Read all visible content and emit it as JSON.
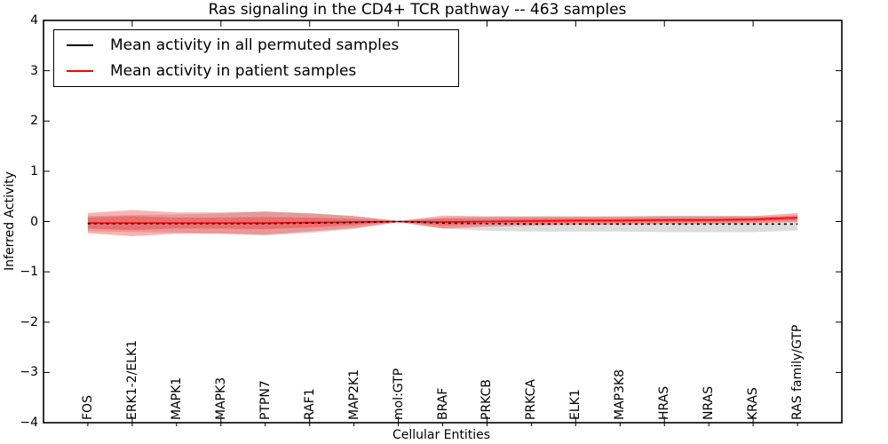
{
  "chart_data": {
    "type": "line",
    "title": "Ras signaling in the CD4+ TCR pathway -- 463 samples",
    "xlabel": "Cellular Entities",
    "ylabel": "Inferred Activity",
    "ylim": [
      -4,
      4
    ],
    "yticks": [
      4,
      3,
      2,
      1,
      0,
      -1,
      -2,
      -3,
      -4
    ],
    "ytick_labels": [
      "4",
      "3",
      "2",
      "1",
      "0",
      "−1",
      "−2",
      "−3",
      "−4"
    ],
    "top_tick_indices": [
      1,
      3,
      5,
      7,
      9,
      11,
      13,
      15
    ],
    "grid": false,
    "legend_position": "upper left",
    "categories": [
      "FOS",
      "ERK1-2/ELK1",
      "MAPK1",
      "MAPK3",
      "PTPN7",
      "RAF1",
      "MAP2K1",
      "mol:GTP",
      "BRAF",
      "PRKCB",
      "PRKCA",
      "ELK1",
      "MAP3K8",
      "HRAS",
      "NRAS",
      "KRAS",
      "RAS family/GTP"
    ],
    "series": [
      {
        "name": "Mean activity in all permuted samples",
        "color": "#000000",
        "line_style": "dashed",
        "band_color_rgba": "rgba(128,128,128,0.28)",
        "mean": [
          -0.04,
          -0.04,
          -0.04,
          -0.04,
          -0.04,
          -0.03,
          -0.02,
          0.0,
          -0.03,
          -0.04,
          -0.05,
          -0.05,
          -0.05,
          -0.05,
          -0.05,
          -0.05,
          -0.05
        ],
        "band_halfwidth": [
          0.15,
          0.17,
          0.18,
          0.2,
          0.24,
          0.2,
          0.13,
          0.01,
          0.11,
          0.14,
          0.15,
          0.15,
          0.15,
          0.16,
          0.16,
          0.16,
          0.13
        ]
      },
      {
        "name": "Mean activity in patient samples",
        "color": "#ff0000",
        "line_style": "solid",
        "band_color_rgba": "rgba(255,0,0,0.30)",
        "inner_band_color_rgba": "rgba(255,0,0,0.28)",
        "mean": [
          -0.03,
          -0.03,
          -0.03,
          -0.03,
          -0.03,
          -0.02,
          -0.01,
          0.0,
          -0.01,
          0.0,
          0.01,
          0.02,
          0.02,
          0.03,
          0.03,
          0.04,
          0.08
        ],
        "band_halfwidth_outer": [
          0.2,
          0.26,
          0.21,
          0.21,
          0.23,
          0.18,
          0.12,
          0.01,
          0.13,
          0.1,
          0.09,
          0.08,
          0.08,
          0.08,
          0.08,
          0.07,
          0.09
        ],
        "band_halfwidth_inner": [
          0.11,
          0.14,
          0.11,
          0.11,
          0.12,
          0.1,
          0.06,
          0.005,
          0.07,
          0.05,
          0.05,
          0.04,
          0.04,
          0.04,
          0.04,
          0.04,
          0.05
        ]
      }
    ]
  }
}
